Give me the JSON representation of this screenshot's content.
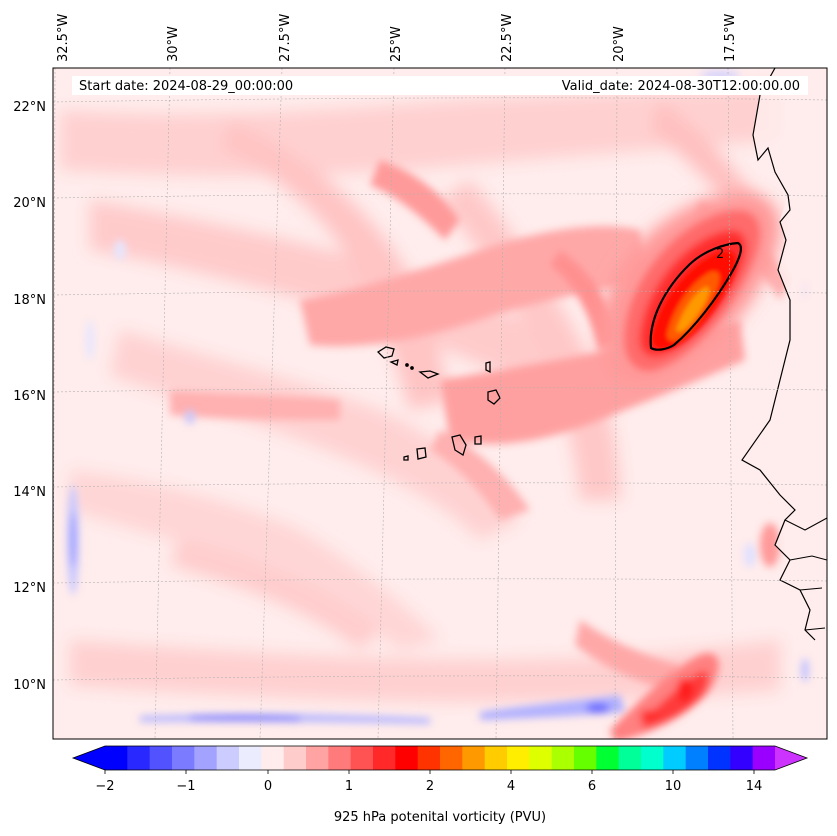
{
  "map": {
    "lon_ticks": [
      "32.5°W",
      "30°W",
      "27.5°W",
      "25°W",
      "22.5°W",
      "20°W",
      "17.5°W"
    ],
    "lat_ticks": [
      "22°N",
      "20°N",
      "18°N",
      "16°N",
      "14°N",
      "12°N",
      "10°N"
    ],
    "start_date": "Start date: 2024-08-29_00:00:00",
    "valid_date": "Valid_date: 2024-08-30T12:00:00.00",
    "contour_label": "2"
  },
  "colorbar": {
    "label": "925 hPa potenital vorticity (PVU)",
    "ticks": [
      "−2",
      "−1",
      "0",
      "1",
      "2",
      "4",
      "6",
      "10",
      "14"
    ],
    "colors": [
      "#0000ff",
      "#2929ff",
      "#5252ff",
      "#7b7bff",
      "#a3a3ff",
      "#ccccff",
      "#ececff",
      "#ffecec",
      "#ffcccc",
      "#ffa3a3",
      "#ff7b7b",
      "#ff5252",
      "#ff2929",
      "#ff0000",
      "#ff3300",
      "#ff6600",
      "#ff9900",
      "#ffcc00",
      "#ffee00",
      "#ddff00",
      "#aaff00",
      "#66ff00",
      "#00ff33",
      "#00ff99",
      "#00ffcc",
      "#00ccff",
      "#0080ff",
      "#0033ff",
      "#3300ff",
      "#9900ff"
    ],
    "under_color": "#0000ff",
    "over_color": "#cc33ff"
  }
}
